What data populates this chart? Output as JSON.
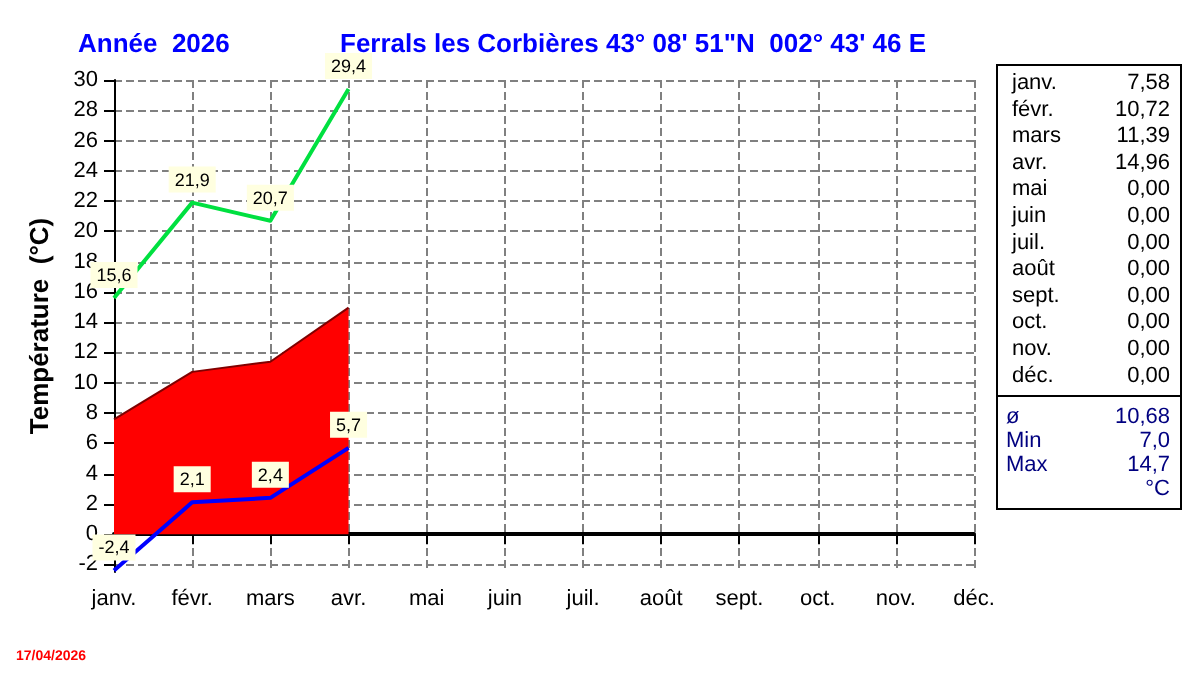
{
  "chart_data": {
    "type": "line",
    "title": "Année  2026",
    "subtitle": "Ferrals les Corbières 43° 08' 51\"N  002° 43' 46 E",
    "ylabel": "Température  (°C)",
    "categories": [
      "janv.",
      "févr.",
      "mars",
      "avr.",
      "mai",
      "juin",
      "juil.",
      "août",
      "sept.",
      "oct.",
      "nov.",
      "déc."
    ],
    "series": [
      {
        "type": "area",
        "color": "#ff0000",
        "values": [
          7.58,
          10.72,
          11.39,
          14.96,
          null,
          null,
          null,
          null,
          null,
          null,
          null,
          null
        ]
      },
      {
        "type": "line",
        "color": "#00e040",
        "values": [
          15.6,
          21.9,
          20.7,
          29.4,
          null,
          null,
          null,
          null,
          null,
          null,
          null,
          null
        ],
        "value_labels": [
          "15,6",
          "21,9",
          "20,7",
          "29,4",
          null,
          null,
          null,
          null,
          null,
          null,
          null,
          null
        ]
      },
      {
        "type": "line",
        "color": "#0000ff",
        "values": [
          -2.4,
          2.1,
          2.4,
          5.7,
          null,
          null,
          null,
          null,
          null,
          null,
          null,
          null
        ],
        "value_labels": [
          "-2,4",
          "2,1",
          "2,4",
          "5,7",
          null,
          null,
          null,
          null,
          null,
          null,
          null,
          null
        ]
      }
    ],
    "ylim": [
      -2.5,
      30
    ],
    "yticks": [
      -2,
      0,
      2,
      4,
      6,
      8,
      10,
      12,
      14,
      16,
      18,
      20,
      22,
      24,
      26,
      28,
      30
    ],
    "grid": true,
    "marker": "none",
    "annotations": [
      "janv.  7,58",
      "févr. 10,72",
      "mars 11,39",
      "avr. 14,96",
      "mai  0,00",
      "juin  0,00",
      "juil.  0,00",
      "août  0,00",
      "sept.  0,00",
      "oct.  0,00",
      "nov.  0,00",
      "déc.  0,00",
      "ø  10,68",
      "Min  7,0",
      "Max  14,7",
      "°C",
      "17/04/2026"
    ]
  }
}
